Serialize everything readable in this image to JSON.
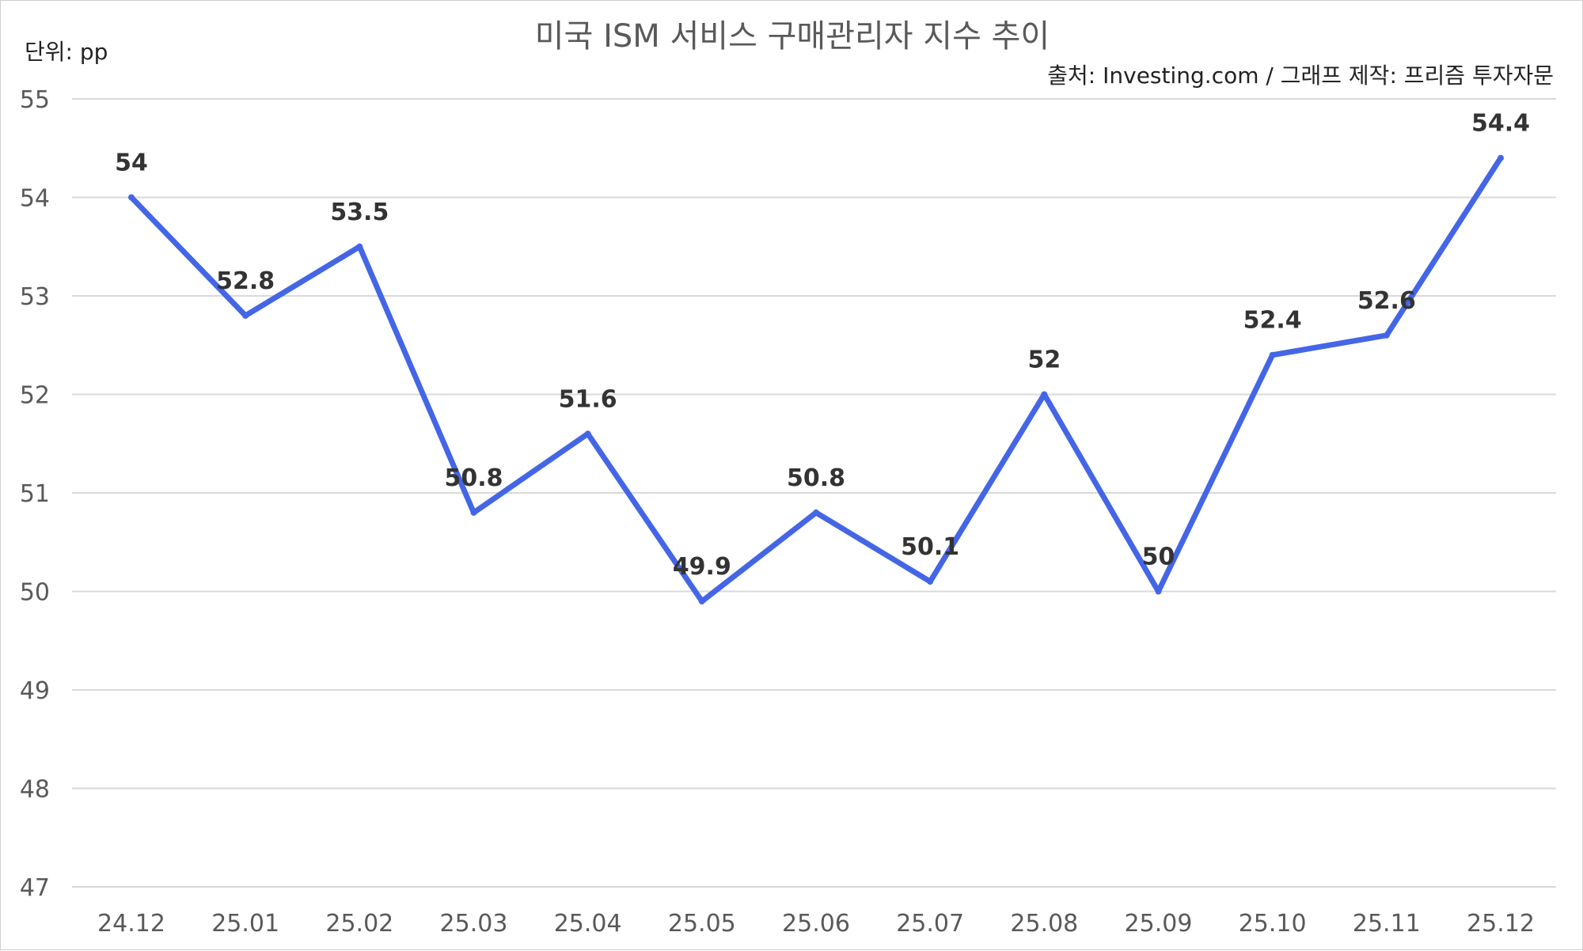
{
  "chart_data": {
    "type": "line",
    "title": "미국 ISM 서비스 구매관리자 지수 추이",
    "unit_label": "단위: pp",
    "source": "출처: Investing.com / 그래프 제작: 프리즘 투자자문",
    "categories": [
      "24.12",
      "25.01",
      "25.02",
      "25.03",
      "25.04",
      "25.05",
      "25.06",
      "25.07",
      "25.08",
      "25.09",
      "25.10",
      "25.11",
      "25.12"
    ],
    "series": [
      {
        "values": [
          54,
          52.8,
          53.5,
          50.8,
          51.6,
          49.9,
          50.8,
          50.1,
          52,
          50,
          52.4,
          52.6,
          54.4
        ],
        "labels": [
          "54",
          "52.8",
          "53.5",
          "50.8",
          "51.6",
          "49.9",
          "50.8",
          "50.1",
          "52",
          "50",
          "52.4",
          "52.6",
          "54.4"
        ]
      }
    ],
    "ylim": [
      47,
      55
    ],
    "yticks": [
      "47",
      "48",
      "49",
      "50",
      "51",
      "52",
      "53",
      "54",
      "55"
    ],
    "xlabel": "",
    "ylabel": "",
    "grid": true,
    "legend": "none",
    "colors": {
      "line": "#4466e6",
      "grid": "#d9d9d9",
      "label": "#333333",
      "axis_text": "#595959"
    }
  }
}
